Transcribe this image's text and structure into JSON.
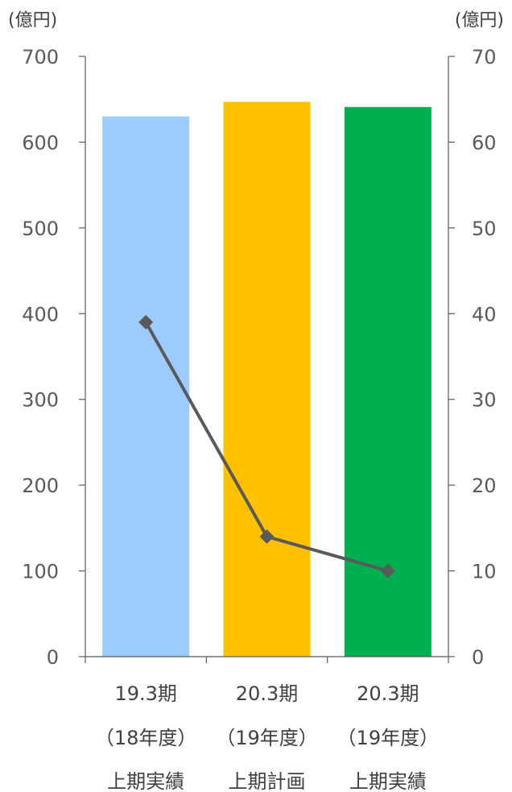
{
  "chart_data": {
    "type": "bar",
    "categories": [
      [
        "19.3期",
        "（18年度）",
        "上期実績"
      ],
      [
        "20.3期",
        "（19年度）",
        "上期計画"
      ],
      [
        "20.3期",
        "（19年度）",
        "上期実績"
      ]
    ],
    "series": [
      {
        "type": "bar",
        "axis": "left",
        "values": [
          630,
          647,
          641
        ]
      },
      {
        "type": "line",
        "axis": "right",
        "values": [
          39,
          14,
          10
        ]
      }
    ],
    "left_axis": {
      "unit": "(億円)",
      "ylim": [
        0,
        700
      ],
      "ticks": [
        0,
        100,
        200,
        300,
        400,
        500,
        600,
        700
      ]
    },
    "right_axis": {
      "unit": "(億円)",
      "ylim": [
        0,
        70
      ],
      "ticks": [
        0,
        10,
        20,
        30,
        40,
        50,
        60,
        70
      ]
    },
    "grid": false,
    "colors": {
      "bars": [
        "#9DCBFF",
        "#FFC000",
        "#00B050"
      ],
      "line": "#595959",
      "axis": "#595959"
    }
  }
}
